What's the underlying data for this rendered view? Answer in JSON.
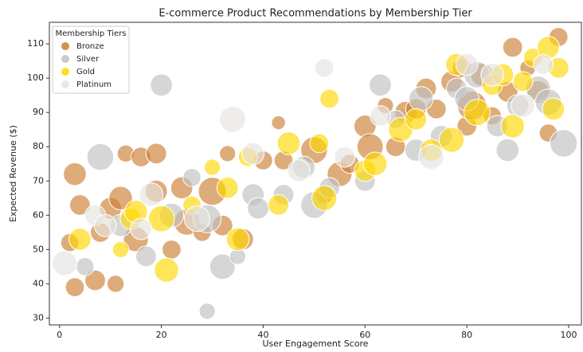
{
  "chart_data": {
    "type": "scatter",
    "title": "E-commerce Product Recommendations by Membership Tier",
    "x_label": "User Engagement Score",
    "y_label": "Expected Revenue ($)",
    "legend_title": "Membership Tiers",
    "legend": "upper left",
    "xlim": [
      -2,
      102.5
    ],
    "ylim": [
      28,
      116.3
    ],
    "xticks": [
      0,
      20,
      40,
      60,
      80,
      100
    ],
    "yticks": [
      30,
      40,
      50,
      60,
      70,
      80,
      90,
      100,
      110
    ],
    "series": [
      {
        "name": "Bronze",
        "color": "#cd7f32",
        "x": [
          2,
          3,
          4,
          3,
          7,
          8,
          10,
          11,
          12,
          13,
          15,
          16,
          19,
          19,
          22,
          24,
          25,
          28,
          30,
          32,
          33,
          36,
          40,
          43,
          44,
          50,
          52,
          55,
          57,
          60,
          61,
          64,
          66,
          68,
          70,
          72,
          74,
          77,
          79,
          80,
          81,
          83,
          85,
          88,
          89,
          92,
          94,
          96,
          98
        ],
        "values": [
          52,
          72,
          63,
          39,
          41,
          55,
          62,
          40,
          65,
          78,
          53,
          77,
          78,
          67,
          50,
          68,
          58,
          55,
          67,
          57,
          78,
          53,
          76,
          87,
          76,
          79,
          66,
          72,
          75,
          86,
          80,
          92,
          80,
          90,
          91,
          97,
          91,
          99,
          103,
          86,
          92,
          101,
          89,
          96,
          109,
          103,
          96,
          84,
          112
        ],
        "sizes": [
          200,
          320,
          260,
          220,
          260,
          240,
          300,
          180,
          340,
          180,
          380,
          240,
          260,
          300,
          220,
          300,
          420,
          200,
          480,
          260,
          160,
          280,
          220,
          120,
          220,
          440,
          200,
          380,
          220,
          300,
          420,
          160,
          240,
          300,
          260,
          260,
          240,
          280,
          220,
          240,
          520,
          320,
          200,
          260,
          240,
          160,
          300,
          200,
          220
        ]
      },
      {
        "name": "Silver",
        "color": "#c0c0c0",
        "x": [
          5,
          8,
          12,
          17,
          20,
          22,
          26,
          29,
          29,
          32,
          35,
          38,
          39,
          44,
          48,
          50,
          53,
          60,
          63,
          66,
          70,
          71,
          75,
          78,
          80,
          82,
          86,
          88,
          90,
          94,
          96,
          99
        ],
        "values": [
          45,
          77,
          57,
          48,
          98,
          60,
          71,
          59,
          32,
          45,
          48,
          66,
          62,
          66,
          74,
          63,
          68,
          70,
          98,
          88,
          79,
          94,
          83,
          97,
          94,
          101,
          86,
          79,
          92,
          97,
          93,
          81
        ],
        "sizes": [
          200,
          440,
          300,
          260,
          300,
          360,
          200,
          480,
          160,
          400,
          160,
          300,
          280,
          260,
          300,
          440,
          260,
          260,
          300,
          200,
          300,
          360,
          300,
          260,
          360,
          420,
          280,
          320,
          300,
          380,
          420,
          460
        ]
      },
      {
        "name": "Gold",
        "color": "#ffd700",
        "x": [
          4,
          12,
          14,
          15,
          20,
          21,
          26,
          30,
          33,
          35,
          37,
          43,
          45,
          51,
          52,
          53,
          60,
          62,
          67,
          70,
          73,
          77,
          78,
          82,
          85,
          87,
          89,
          91,
          93,
          97,
          98,
          96
        ],
        "values": [
          53,
          50,
          59,
          61,
          59,
          44,
          63,
          74,
          68,
          53,
          77,
          63,
          81,
          81,
          65,
          94,
          73,
          75,
          85,
          88,
          79,
          82,
          104,
          90,
          98,
          101,
          86,
          99,
          106,
          91,
          103,
          109
        ],
        "sizes": [
          300,
          160,
          280,
          320,
          420,
          360,
          200,
          160,
          280,
          320,
          220,
          260,
          320,
          220,
          380,
          220,
          280,
          340,
          360,
          280,
          300,
          380,
          300,
          420,
          260,
          300,
          340,
          240,
          220,
          300,
          260,
          300
        ]
      },
      {
        "name": "Platinum",
        "color": "#e5e4e2",
        "x": [
          1,
          7,
          9,
          16,
          18,
          27,
          34,
          38,
          47,
          52,
          56,
          63,
          73,
          80,
          85,
          91,
          95
        ],
        "values": [
          46,
          60,
          57,
          56,
          66,
          59,
          88,
          78,
          73,
          103,
          77,
          89,
          77,
          104,
          101,
          92,
          104
        ],
        "sizes": [
          380,
          260,
          300,
          280,
          340,
          400,
          420,
          300,
          300,
          220,
          260,
          260,
          380,
          300,
          320,
          340,
          240
        ]
      }
    ]
  }
}
